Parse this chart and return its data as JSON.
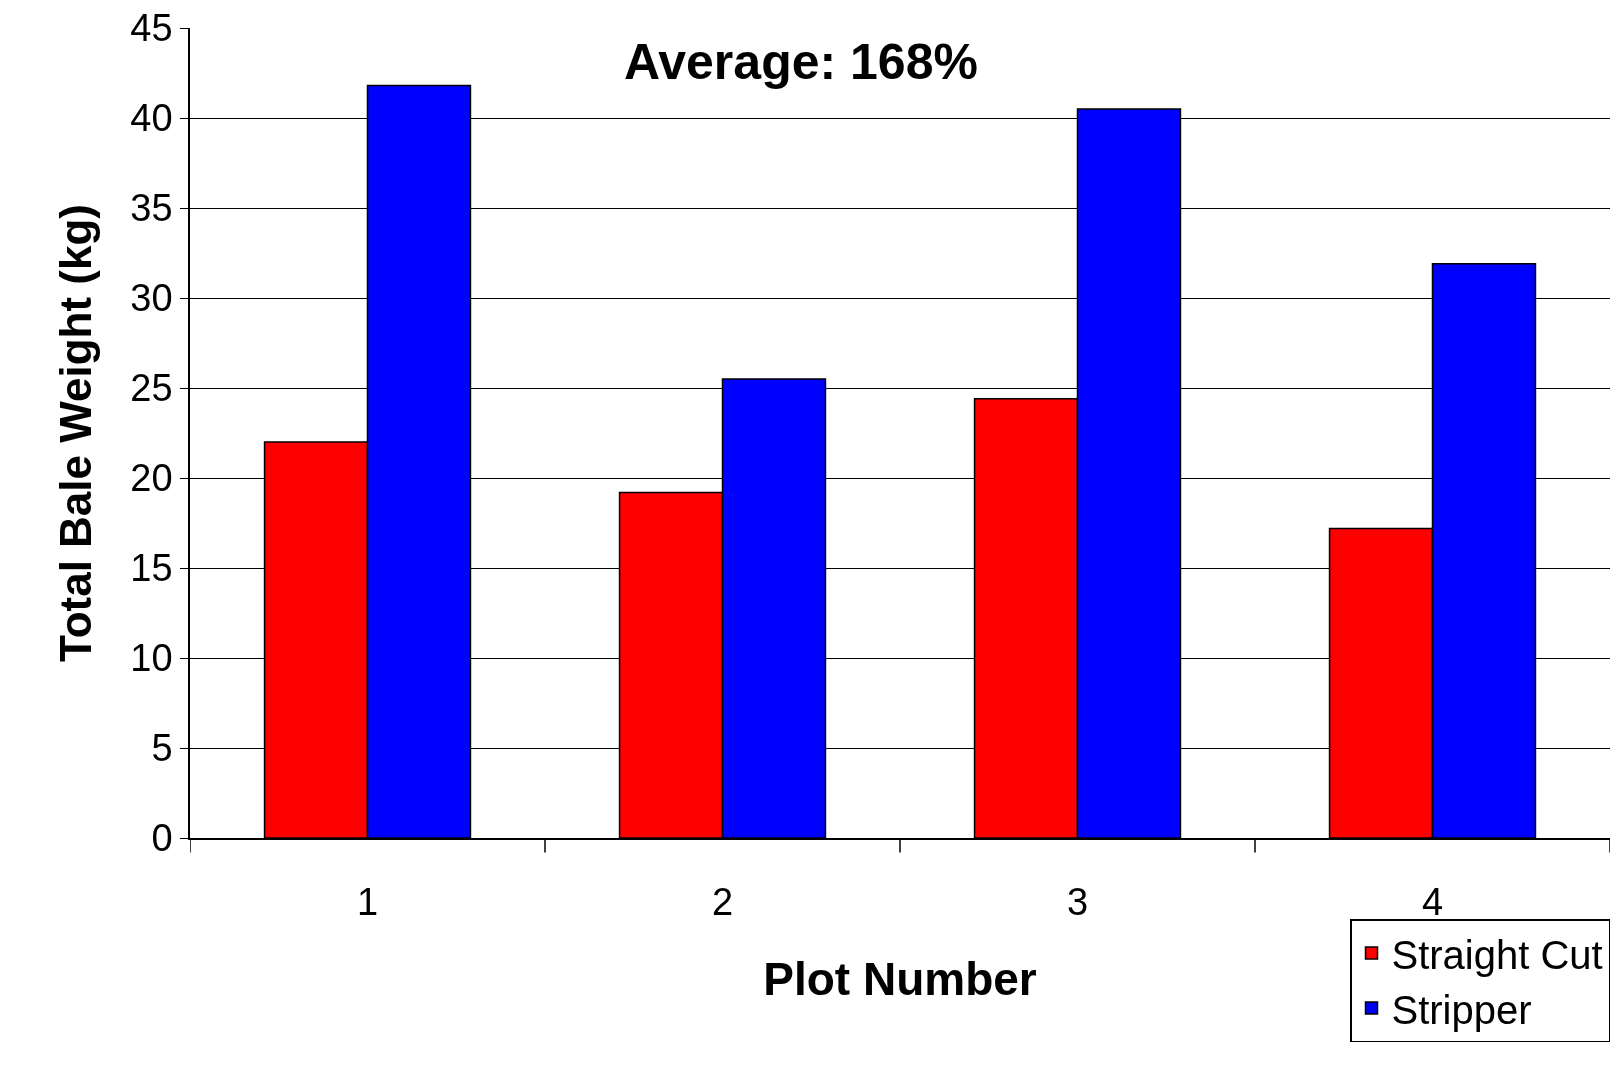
{
  "chart_data": {
    "type": "bar",
    "categories": [
      "1",
      "2",
      "3",
      "4"
    ],
    "series": [
      {
        "name": "Straight Cut",
        "color": "#ff0000",
        "values": [
          22,
          19.2,
          24.4,
          17.2
        ]
      },
      {
        "name": "Stripper",
        "color": "#0000ff",
        "values": [
          41.8,
          25.5,
          40.5,
          31.9
        ]
      }
    ],
    "xlabel": "Plot Number",
    "ylabel": "Total Bale Weight (kg)",
    "annotations": [
      "Average: 168%"
    ],
    "ylim": [
      0,
      45
    ],
    "yticks": [
      0,
      5,
      10,
      15,
      20,
      25,
      30,
      35,
      40,
      45
    ],
    "grid": "y",
    "legend": "bottom right"
  }
}
